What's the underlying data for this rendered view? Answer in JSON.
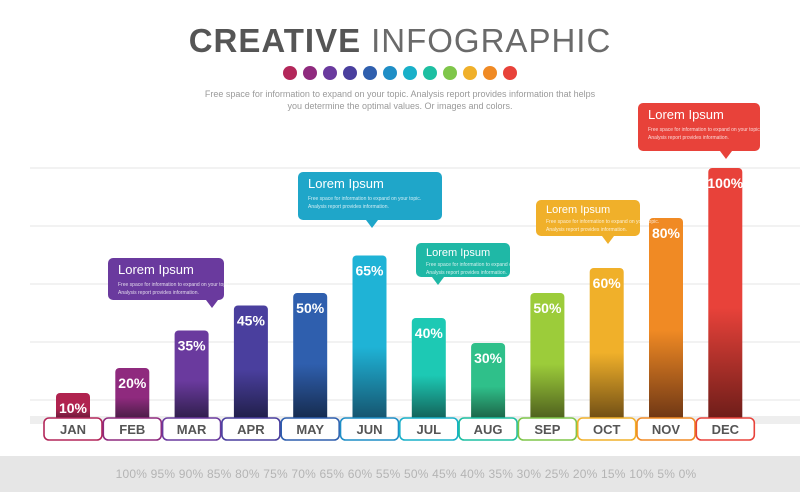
{
  "header": {
    "title_bold": "CREATIVE",
    "title_light": "INFOGRAPHIC",
    "subtitle": "Free space for information to expand on your topic. Analysis report provides information that helps you determine the optimal values. Or images and colors."
  },
  "palette": [
    "#b3275a",
    "#8f2a7e",
    "#6a3a9e",
    "#4a3f9e",
    "#2f5fae",
    "#1f8ec6",
    "#19b0c9",
    "#1dbfa2",
    "#7fc64a",
    "#f0b02a",
    "#f08a24",
    "#e8423a"
  ],
  "footer": {
    "scale_text": "100% 95% 90% 85% 80% 75% 70% 65% 60% 55% 50% 45% 40% 35% 30% 25% 20% 15% 10% 5% 0%"
  },
  "callouts": [
    {
      "bar": "FEB",
      "title": "Lorem Ipsum",
      "text": "Free space for information to expand on your topic. Analysis report provides information.",
      "color": "#6a3a9e"
    },
    {
      "bar": "JUN",
      "title": "Lorem Ipsum",
      "text": "Free space for information to expand on your topic. Analysis report provides information.",
      "color": "#1fa6c9"
    },
    {
      "bar": "JUL",
      "title": "Lorem Ipsum",
      "text": "Free space for information to expand on your topic. Analysis report provides information.",
      "color": "#1fb8a6"
    },
    {
      "bar": "OCT",
      "title": "Lorem Ipsum",
      "text": "Free space for information to expand on your topic. Analysis report provides information.",
      "color": "#f0b02a"
    },
    {
      "bar": "DEC",
      "title": "Lorem Ipsum",
      "text": "Free space for information to expand on your topic. Analysis report provides information.",
      "color": "#e8423a"
    }
  ],
  "chart_data": {
    "type": "bar",
    "title": "CREATIVE INFOGRAPHIC",
    "categories": [
      "JAN",
      "FEB",
      "MAR",
      "APR",
      "MAY",
      "JUN",
      "JUL",
      "AUG",
      "SEP",
      "OCT",
      "NOV",
      "DEC"
    ],
    "values": [
      10,
      20,
      35,
      45,
      50,
      65,
      40,
      30,
      50,
      60,
      80,
      100
    ],
    "value_labels": [
      "10%",
      "20%",
      "35%",
      "45%",
      "50%",
      "65%",
      "40%",
      "30%",
      "50%",
      "60%",
      "80%",
      "100%"
    ],
    "ylim": [
      0,
      100
    ],
    "unit": "%",
    "grid": true,
    "colors": [
      {
        "top": "#b0234f",
        "bottom": "#4a1830"
      },
      {
        "top": "#8f2a7e",
        "bottom": "#3e1a3c"
      },
      {
        "top": "#6a3a9e",
        "bottom": "#2a1c44"
      },
      {
        "top": "#4a3f9e",
        "bottom": "#1e1d44"
      },
      {
        "top": "#2f5fae",
        "bottom": "#142848"
      },
      {
        "top": "#1fb3d6",
        "bottom": "#15506a"
      },
      {
        "top": "#1dc9b4",
        "bottom": "#125a52"
      },
      {
        "top": "#2fc08a",
        "bottom": "#1a5a40"
      },
      {
        "top": "#9ccc3a",
        "bottom": "#4a5a1c"
      },
      {
        "top": "#f0b02a",
        "bottom": "#6a4a14"
      },
      {
        "top": "#f08a24",
        "bottom": "#6a3414"
      },
      {
        "top": "#e8423a",
        "bottom": "#6a1c18"
      }
    ],
    "label_outline_colors": [
      "#b3275a",
      "#8f2a7e",
      "#6a3a9e",
      "#4a3f9e",
      "#2f5fae",
      "#1f8ec6",
      "#19b0c9",
      "#1dbfa2",
      "#7fc64a",
      "#f0b02a",
      "#f08a24",
      "#e8423a"
    ]
  }
}
